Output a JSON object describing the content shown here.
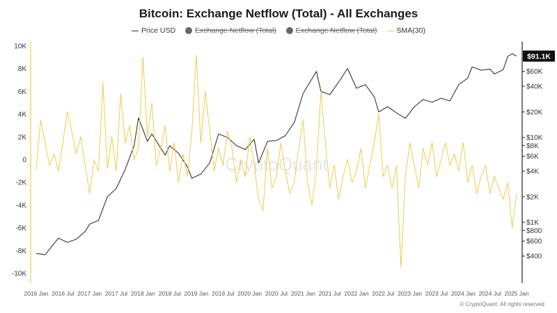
{
  "chart_data": {
    "type": "line",
    "title": "Bitcoin: Exchange Netflow (Total) - All Exchanges",
    "watermark": "CryptoQuant",
    "copyright": "© CryptoQuant. All rights reserved",
    "legend": [
      {
        "name": "Price USD",
        "style": "line",
        "color": "#333333",
        "enabled": true
      },
      {
        "name": "Exchange Netflow (Total)",
        "style": "dot",
        "color": "#666666",
        "enabled": false
      },
      {
        "name": "Exchange Netflow (Total)",
        "style": "dot",
        "color": "#666666",
        "enabled": false
      },
      {
        "name": "SMA(30)",
        "style": "line",
        "color": "#f2c94c",
        "enabled": true
      }
    ],
    "x_ticks": [
      "2016 Jan",
      "2016 Jul",
      "2017 Jan",
      "2017 Jul",
      "2018 Jan",
      "2018 Jul",
      "2019 Jan",
      "2019 Jul",
      "2020 Jan",
      "2020 Jul",
      "2021 Jan",
      "2021 Jul",
      "2022 Jan",
      "2022 Jul",
      "2023 Jan",
      "2023 Jul",
      "2024 Jan",
      "2024 Jul",
      "2025 Jan"
    ],
    "left_axis": {
      "min": -10000,
      "max": 10000,
      "ticks": [
        {
          "v": 10000,
          "label": "10K"
        },
        {
          "v": 8000,
          "label": "8K"
        },
        {
          "v": 6000,
          "label": "6K"
        },
        {
          "v": 4000,
          "label": "4K"
        },
        {
          "v": 2000,
          "label": "2K"
        },
        {
          "v": 0,
          "label": "0"
        },
        {
          "v": -2000,
          "label": "-2K"
        },
        {
          "v": -4000,
          "label": "-4K"
        },
        {
          "v": -6000,
          "label": "-6K"
        },
        {
          "v": -8000,
          "label": "-8K"
        },
        {
          "v": -10000,
          "label": "-10K"
        }
      ]
    },
    "right_axis": {
      "scale": "log",
      "min": 250,
      "max": 120000,
      "ticks": [
        {
          "v": 60000,
          "label": "$60K"
        },
        {
          "v": 40000,
          "label": "$40K"
        },
        {
          "v": 20000,
          "label": "$20K"
        },
        {
          "v": 10000,
          "label": "$10K"
        },
        {
          "v": 8000,
          "label": "$8K"
        },
        {
          "v": 6000,
          "label": "$6K"
        },
        {
          "v": 4000,
          "label": "$4K"
        },
        {
          "v": 2000,
          "label": "$2K"
        },
        {
          "v": 1000,
          "label": "$1K"
        },
        {
          "v": 800,
          "label": "$800"
        },
        {
          "v": 600,
          "label": "$600"
        },
        {
          "v": 400,
          "label": "$400"
        }
      ],
      "current_label": "$91.1K",
      "current_value": 91100
    },
    "series": [
      {
        "name": "Price USD",
        "axis": "right",
        "color": "#333333",
        "points": [
          [
            "2016 Jan",
            430
          ],
          [
            "2016 Mar",
            415
          ],
          [
            "2016 Jun",
            650
          ],
          [
            "2016 Aug",
            580
          ],
          [
            "2016 Oct",
            630
          ],
          [
            "2016 Dec",
            780
          ],
          [
            "2017 Jan",
            950
          ],
          [
            "2017 Mar",
            1050
          ],
          [
            "2017 May",
            2000
          ],
          [
            "2017 Jul",
            2500
          ],
          [
            "2017 Sep",
            4200
          ],
          [
            "2017 Nov",
            8000
          ],
          [
            "2017 Dec",
            17000
          ],
          [
            "2018 Feb",
            9000
          ],
          [
            "2018 Mar",
            11000
          ],
          [
            "2018 Jun",
            6200
          ],
          [
            "2018 Jul",
            8000
          ],
          [
            "2018 Sep",
            6500
          ],
          [
            "2018 Nov",
            4500
          ],
          [
            "2018 Dec",
            3300
          ],
          [
            "2019 Feb",
            3700
          ],
          [
            "2019 Apr",
            5000
          ],
          [
            "2019 Jun",
            11000
          ],
          [
            "2019 Aug",
            10000
          ],
          [
            "2019 Oct",
            8000
          ],
          [
            "2019 Dec",
            7200
          ],
          [
            "2020 Feb",
            9500
          ],
          [
            "2020 Mar",
            5000
          ],
          [
            "2020 May",
            9000
          ],
          [
            "2020 Jul",
            9200
          ],
          [
            "2020 Sep",
            10500
          ],
          [
            "2020 Nov",
            15000
          ],
          [
            "2021 Jan",
            33000
          ],
          [
            "2021 Apr",
            60000
          ],
          [
            "2021 May",
            35000
          ],
          [
            "2021 Jul",
            32000
          ],
          [
            "2021 Sep",
            45000
          ],
          [
            "2021 Nov",
            65000
          ],
          [
            "2022 Jan",
            38000
          ],
          [
            "2022 Mar",
            42000
          ],
          [
            "2022 May",
            30000
          ],
          [
            "2022 Jun",
            20000
          ],
          [
            "2022 Aug",
            23000
          ],
          [
            "2022 Oct",
            19500
          ],
          [
            "2022 Dec",
            16800
          ],
          [
            "2023 Feb",
            23000
          ],
          [
            "2023 Apr",
            28000
          ],
          [
            "2023 Jun",
            26000
          ],
          [
            "2023 Aug",
            29000
          ],
          [
            "2023 Oct",
            27000
          ],
          [
            "2023 Dec",
            42000
          ],
          [
            "2024 Feb",
            50000
          ],
          [
            "2024 Mar",
            68000
          ],
          [
            "2024 May",
            62000
          ],
          [
            "2024 Jul",
            64000
          ],
          [
            "2024 Aug",
            56000
          ],
          [
            "2024 Oct",
            63000
          ],
          [
            "2024 Nov",
            90000
          ],
          [
            "2024 Dec",
            97000
          ],
          [
            "2025 Jan",
            91100
          ]
        ]
      },
      {
        "name": "SMA(30)",
        "axis": "left",
        "color": "#f2c94c",
        "points": [
          [
            "2016 Jan",
            -1000
          ],
          [
            "2016 Feb",
            3500
          ],
          [
            "2016 Mar",
            1500
          ],
          [
            "2016 Apr",
            -500
          ],
          [
            "2016 May",
            500
          ],
          [
            "2016 Jun",
            -1000
          ],
          [
            "2016 Jul",
            1500
          ],
          [
            "2016 Aug",
            4200
          ],
          [
            "2016 Sep",
            2500
          ],
          [
            "2016 Oct",
            500
          ],
          [
            "2016 Nov",
            2000
          ],
          [
            "2016 Dec",
            -500
          ],
          [
            "2017 Jan",
            -3000
          ],
          [
            "2017 Feb",
            0
          ],
          [
            "2017 Mar",
            -1000
          ],
          [
            "2017 Apr",
            6800
          ],
          [
            "2017 May",
            -800
          ],
          [
            "2017 Jun",
            2000
          ],
          [
            "2017 Jul",
            -1000
          ],
          [
            "2017 Aug",
            5800
          ],
          [
            "2017 Sep",
            1500
          ],
          [
            "2017 Oct",
            3000
          ],
          [
            "2017 Nov",
            0
          ],
          [
            "2017 Dec",
            1000
          ],
          [
            "2018 Jan",
            9000
          ],
          [
            "2018 Feb",
            2000
          ],
          [
            "2018 Mar",
            5000
          ],
          [
            "2018 Apr",
            -500
          ],
          [
            "2018 May",
            1000
          ],
          [
            "2018 Jun",
            3000
          ],
          [
            "2018 Jul",
            -1000
          ],
          [
            "2018 Aug",
            1500
          ],
          [
            "2018 Sep",
            -2000
          ],
          [
            "2018 Oct",
            500
          ],
          [
            "2018 Nov",
            -1500
          ],
          [
            "2018 Dec",
            2500
          ],
          [
            "2019 Jan",
            9200
          ],
          [
            "2019 Feb",
            1500
          ],
          [
            "2019 Mar",
            6000
          ],
          [
            "2019 Apr",
            2500
          ],
          [
            "2019 May",
            -1000
          ],
          [
            "2019 Jun",
            1000
          ],
          [
            "2019 Jul",
            -500
          ],
          [
            "2019 Aug",
            2500
          ],
          [
            "2019 Sep",
            1000
          ],
          [
            "2019 Oct",
            -2000
          ],
          [
            "2019 Nov",
            0
          ],
          [
            "2019 Dec",
            -1500
          ],
          [
            "2020 Jan",
            2000
          ],
          [
            "2020 Feb",
            -500
          ],
          [
            "2020 Mar",
            -3500
          ],
          [
            "2020 Apr",
            -4500
          ],
          [
            "2020 May",
            1000
          ],
          [
            "2020 Jun",
            -2500
          ],
          [
            "2020 Jul",
            -1500
          ],
          [
            "2020 Aug",
            1500
          ],
          [
            "2020 Sep",
            -1000
          ],
          [
            "2020 Oct",
            -3000
          ],
          [
            "2020 Nov",
            -2000
          ],
          [
            "2020 Dec",
            1000
          ],
          [
            "2021 Jan",
            3500
          ],
          [
            "2021 Feb",
            -2000
          ],
          [
            "2021 Mar",
            -4000
          ],
          [
            "2021 Apr",
            -1000
          ],
          [
            "2021 May",
            6000
          ],
          [
            "2021 Jun",
            1500
          ],
          [
            "2021 Jul",
            -2500
          ],
          [
            "2021 Aug",
            -500
          ],
          [
            "2021 Sep",
            -3500
          ],
          [
            "2021 Oct",
            -1500
          ],
          [
            "2021 Nov",
            0
          ],
          [
            "2021 Dec",
            -2000
          ],
          [
            "2022 Jan",
            -1000
          ],
          [
            "2022 Feb",
            1000
          ],
          [
            "2022 Mar",
            -2500
          ],
          [
            "2022 Apr",
            -500
          ],
          [
            "2022 May",
            1500
          ],
          [
            "2022 Jun",
            4000
          ],
          [
            "2022 Jul",
            -1500
          ],
          [
            "2022 Aug",
            -500
          ],
          [
            "2022 Sep",
            -2500
          ],
          [
            "2022 Oct",
            -500
          ],
          [
            "2022 Nov",
            -9500
          ],
          [
            "2022 Dec",
            -1500
          ],
          [
            "2023 Jan",
            1500
          ],
          [
            "2023 Feb",
            -500
          ],
          [
            "2023 Mar",
            -2500
          ],
          [
            "2023 Apr",
            1000
          ],
          [
            "2023 May",
            -500
          ],
          [
            "2023 Jun",
            1500
          ],
          [
            "2023 Jul",
            -1500
          ],
          [
            "2023 Aug",
            0
          ],
          [
            "2023 Sep",
            1500
          ],
          [
            "2023 Oct",
            -500
          ],
          [
            "2023 Nov",
            500
          ],
          [
            "2023 Dec",
            -1000
          ],
          [
            "2024 Jan",
            1500
          ],
          [
            "2024 Feb",
            -2000
          ],
          [
            "2024 Mar",
            -500
          ],
          [
            "2024 Apr",
            -3000
          ],
          [
            "2024 May",
            -1500
          ],
          [
            "2024 Jun",
            -500
          ],
          [
            "2024 Jul",
            -3000
          ],
          [
            "2024 Aug",
            -1500
          ],
          [
            "2024 Sep",
            -2500
          ],
          [
            "2024 Oct",
            -3500
          ],
          [
            "2024 Nov",
            -2000
          ],
          [
            "2024 Dec",
            -6000
          ],
          [
            "2025 Jan",
            -3000
          ]
        ]
      }
    ]
  }
}
